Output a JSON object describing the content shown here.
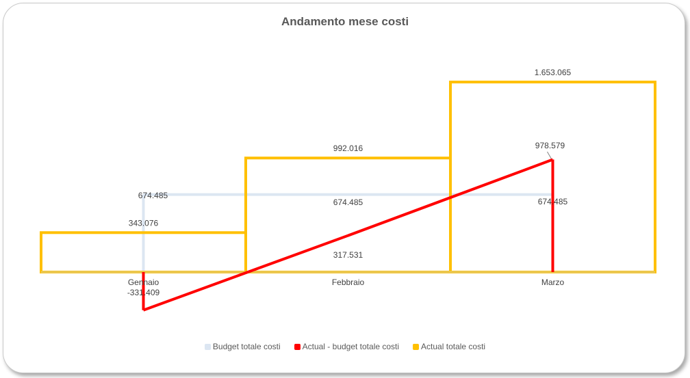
{
  "chart_data": {
    "type": "line",
    "title": "Andamento mese costi",
    "categories": [
      "Gennaio",
      "Febbraio",
      "Marzo"
    ],
    "series": [
      {
        "name": "Budget totale costi",
        "values": [
          674485,
          674485,
          674485
        ],
        "labels": [
          "674.485",
          "674.485",
          "674.485"
        ],
        "color": "#dce6f2",
        "style": "step"
      },
      {
        "name": "Actual - budget totale costi",
        "values": [
          -331409,
          317531,
          978579
        ],
        "labels": [
          "-331.409",
          "317.531",
          "978.579"
        ],
        "color": "#ff0000",
        "style": "drop-line"
      },
      {
        "name": "Actual totale costi",
        "values": [
          343076,
          992016,
          1653065
        ],
        "labels": [
          "343.076",
          "992.016",
          "1.653.065"
        ],
        "color": "#ffc000",
        "style": "step"
      }
    ],
    "ylim": [
      -331409,
      1653065
    ],
    "grid": false,
    "legend": "bottom"
  }
}
